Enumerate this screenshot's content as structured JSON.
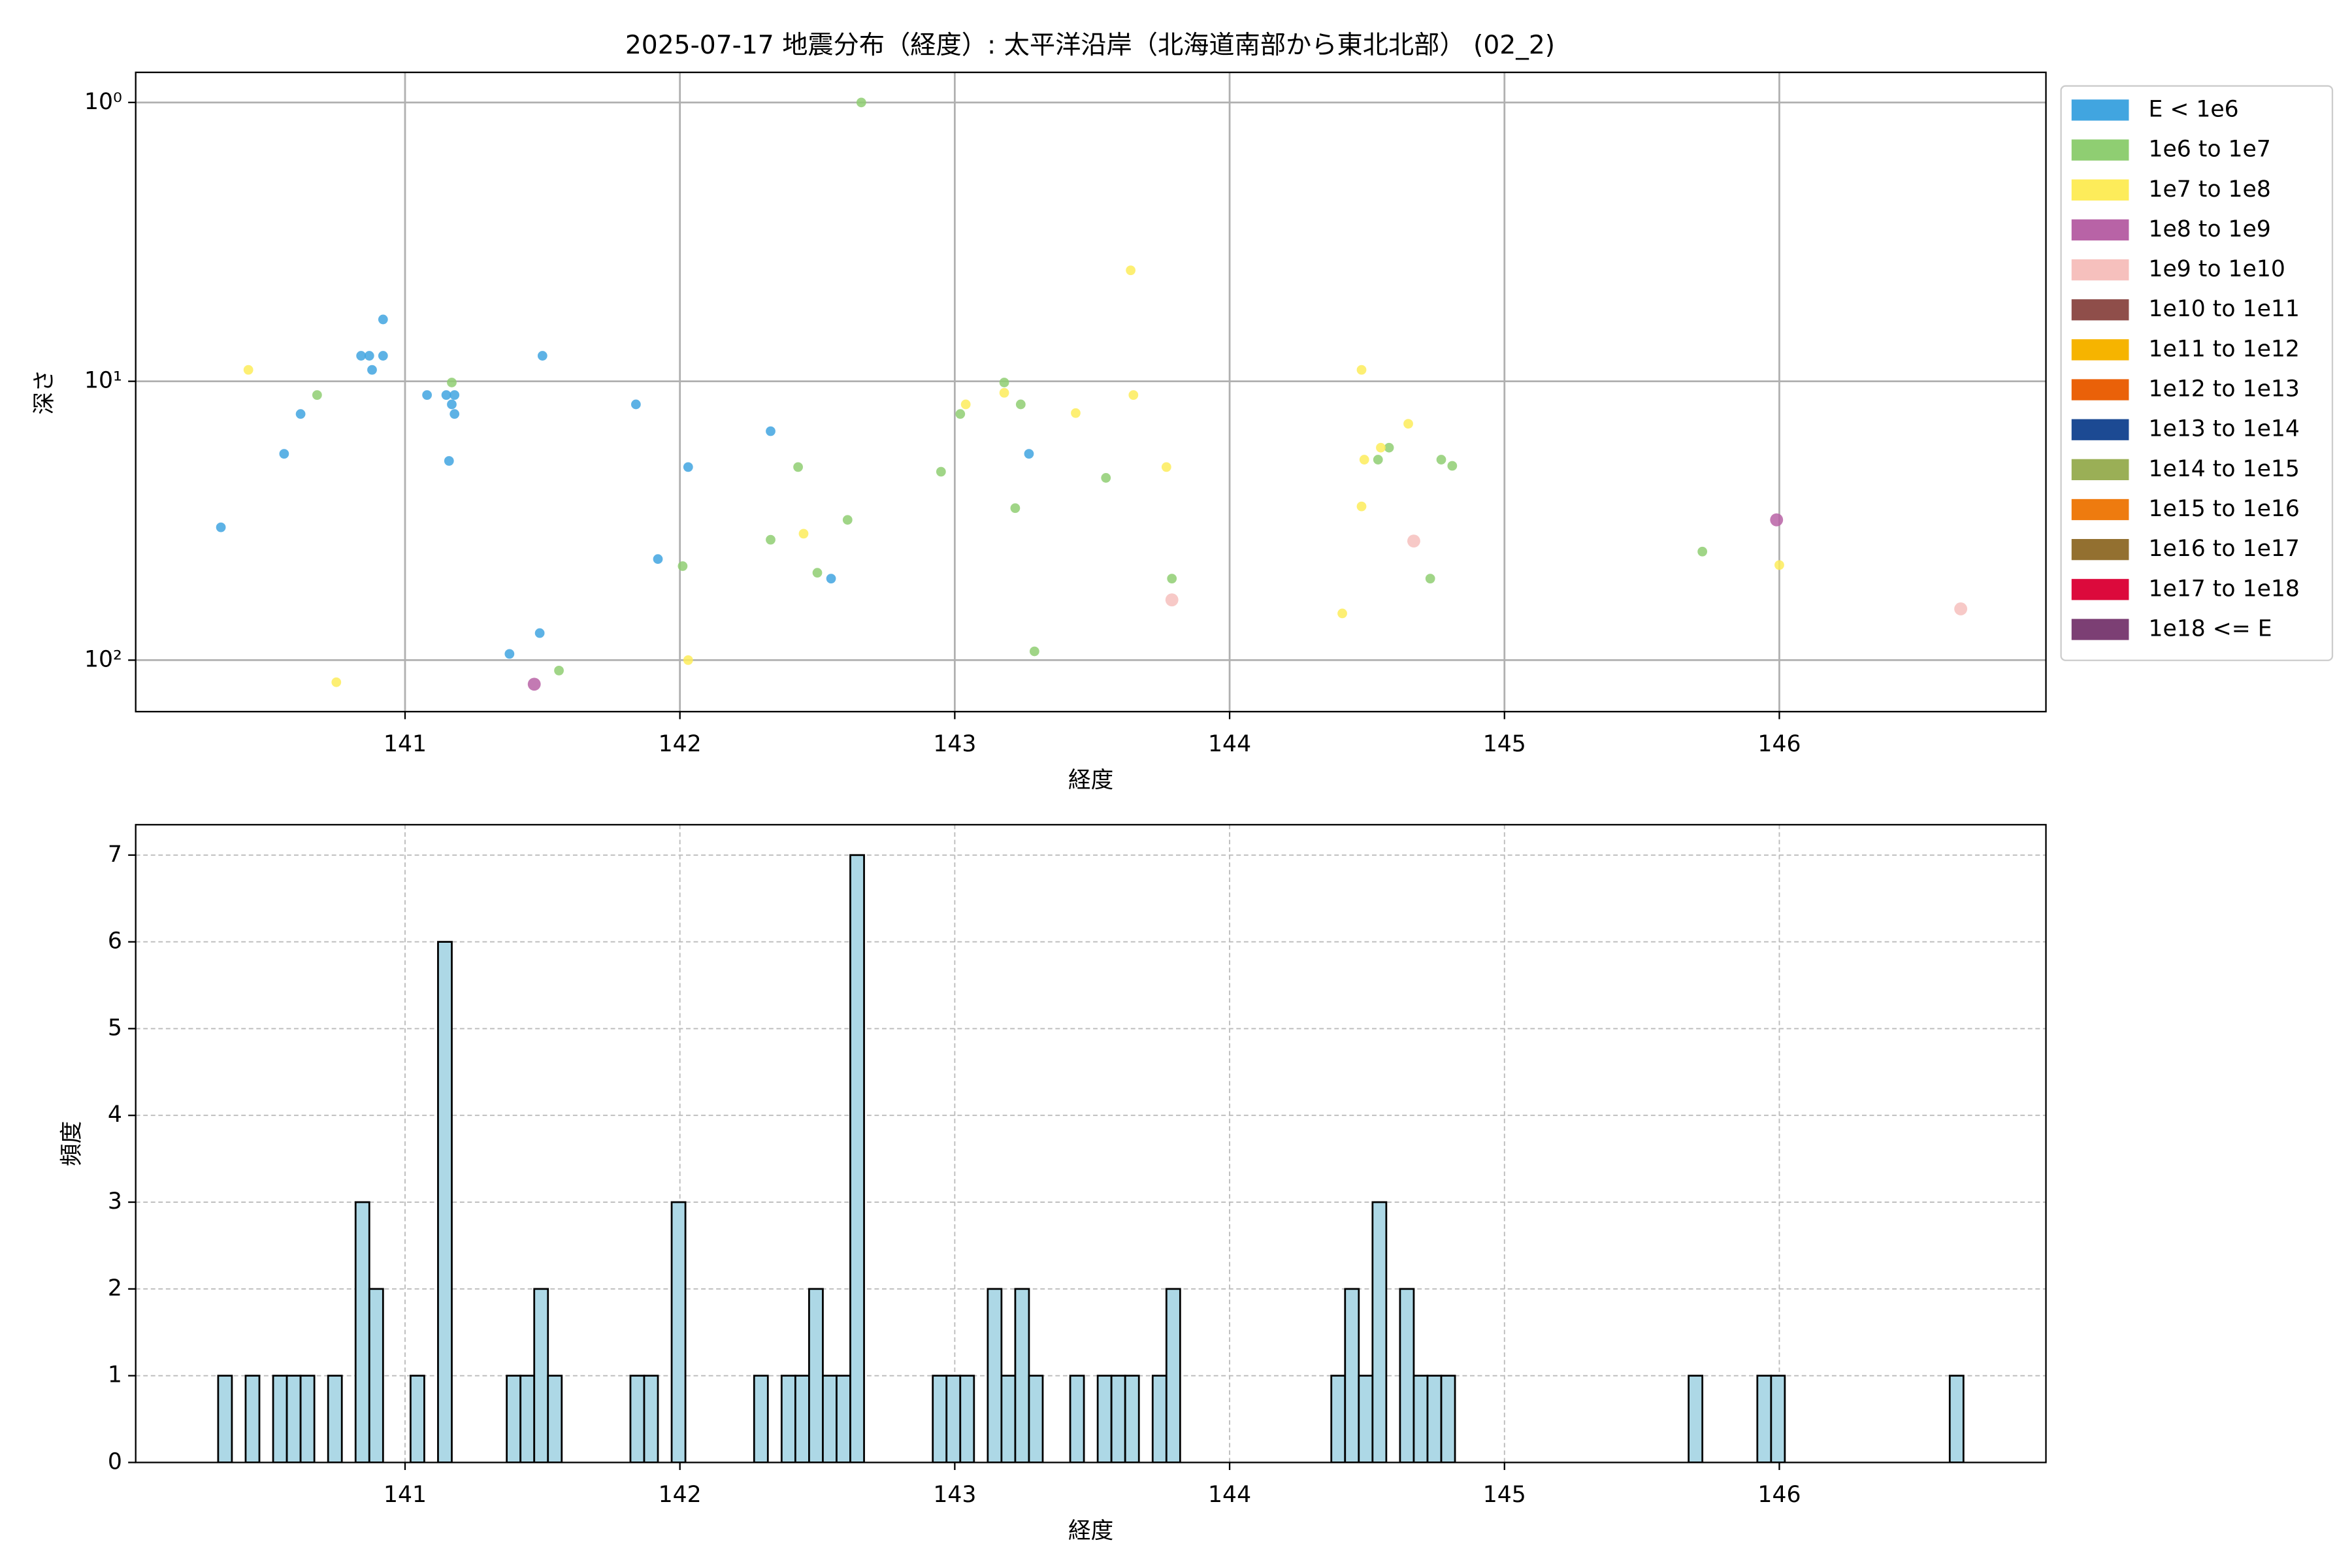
{
  "chart_data": [
    {
      "type": "scatter",
      "title": "2025-07-17 地震分布（経度）: 太平洋沿岸（北海道南部から東北北部） (02_2)",
      "xlabel": "経度",
      "ylabel": "深さ",
      "log_y": true,
      "grid": true,
      "grid_style": "solid",
      "legend": "outside-upper-right",
      "xlim": [
        140.02,
        146.97
      ],
      "xticks": [
        141,
        142,
        143,
        144,
        145,
        146
      ],
      "ylim": [
        153,
        0.78
      ],
      "yticks": [
        {
          "value": 1,
          "label": "10⁰"
        },
        {
          "value": 10,
          "label": "10¹"
        },
        {
          "value": 100,
          "label": "10²"
        }
      ],
      "series": [
        {
          "name": "E < 1e6",
          "color": "#41a5e0",
          "x": [
            140.33,
            140.56,
            140.62,
            140.84,
            140.87,
            140.88,
            140.92,
            140.92,
            141.08,
            141.15,
            141.18,
            141.17,
            141.18,
            141.16,
            141.38,
            141.49,
            141.5,
            141.84,
            141.92,
            142.03,
            142.33,
            142.55,
            143.27
          ],
          "y": [
            33.4,
            18.2,
            13.1,
            8.1,
            8.1,
            9.1,
            8.1,
            6.0,
            11.2,
            11.2,
            11.2,
            12.1,
            13.1,
            19.3,
            95,
            80,
            8.1,
            12.1,
            43.4,
            20.3,
            15.1,
            51,
            18.2
          ]
        },
        {
          "name": "1e6 to 1e7",
          "color": "#8fce72",
          "x": [
            140.68,
            141.17,
            141.56,
            142.01,
            142.33,
            142.43,
            142.5,
            142.61,
            142.66,
            142.95,
            143.02,
            143.18,
            143.24,
            143.22,
            143.29,
            143.55,
            143.79,
            144.54,
            144.58,
            144.73,
            144.77,
            144.81,
            145.72
          ],
          "y": [
            11.2,
            10.1,
            109,
            46,
            37,
            20.3,
            48.6,
            31.4,
            1.0,
            21.1,
            13.1,
            10.1,
            12.1,
            28.5,
            93,
            22.2,
            51,
            19.1,
            17.3,
            51,
            19.1,
            20.1,
            40.8
          ]
        },
        {
          "name": "1e7 to 1e8",
          "color": "#fdec5a",
          "x": [
            140.43,
            140.75,
            142.03,
            142.45,
            143.04,
            143.18,
            143.44,
            143.64,
            143.65,
            143.77,
            144.41,
            144.48,
            144.49,
            144.48,
            144.55,
            144.65,
            146.0
          ],
          "y": [
            9.1,
            120,
            100,
            35.2,
            12.1,
            11.0,
            13.0,
            4.0,
            11.2,
            20.3,
            68,
            9.1,
            19.1,
            28.1,
            17.3,
            14.2,
            45.6
          ]
        },
        {
          "name": "1e8 to 1e9",
          "color": "#b863a6",
          "x": [
            141.47,
            145.99
          ],
          "y": [
            122,
            31.4
          ]
        },
        {
          "name": "1e9 to 1e10",
          "color": "#f6c0bd",
          "x": [
            144.67,
            143.79,
            146.66
          ],
          "y": [
            37.4,
            60.8,
            65.5
          ]
        },
        {
          "name": "1e10 to 1e11",
          "color": "#8f4e4a",
          "x": [],
          "y": []
        },
        {
          "name": "1e11 to 1e12",
          "color": "#f6b400",
          "x": [],
          "y": []
        },
        {
          "name": "1e12 to 1e13",
          "color": "#ea6109",
          "x": [],
          "y": []
        },
        {
          "name": "1e13 to 1e14",
          "color": "#1c4a93",
          "x": [],
          "y": []
        },
        {
          "name": "1e14 to 1e15",
          "color": "#9aaf56",
          "x": [],
          "y": []
        },
        {
          "name": "1e15 to 1e16",
          "color": "#ee7b0f",
          "x": [],
          "y": []
        },
        {
          "name": "1e16 to 1e17",
          "color": "#937030",
          "x": [],
          "y": []
        },
        {
          "name": "1e17 to 1e18",
          "color": "#dc0a3c",
          "x": [],
          "y": []
        },
        {
          "name": "1e18 <= E",
          "color": "#7c3f74",
          "x": [],
          "y": []
        }
      ]
    },
    {
      "type": "histogram",
      "xlabel": "経度",
      "ylabel": "頻度",
      "grid": true,
      "grid_style": "dashed",
      "color": "#add8e6",
      "edgecolor": "#000000",
      "xlim": [
        140.02,
        146.97
      ],
      "xticks": [
        141,
        142,
        143,
        144,
        145,
        146
      ],
      "ylim": [
        0,
        7.35
      ],
      "yticks": [
        0,
        1,
        2,
        3,
        4,
        5,
        6,
        7
      ],
      "bins": [
        140.32,
        140.37,
        140.42,
        140.47,
        140.52,
        140.57,
        140.62,
        140.67,
        140.72,
        140.77,
        140.82,
        140.87,
        140.92,
        140.97,
        141.02,
        141.07,
        141.12,
        141.17,
        141.22,
        141.27,
        141.32,
        141.37,
        141.42,
        141.47,
        141.52,
        141.57,
        141.62,
        141.67,
        141.72,
        141.77,
        141.82,
        141.87,
        141.92,
        141.97,
        142.02,
        142.07,
        142.12,
        142.17,
        142.22,
        142.27,
        142.32,
        142.37,
        142.42,
        142.47,
        142.52,
        142.57,
        142.62,
        142.67,
        142.72,
        142.77,
        142.82,
        142.87,
        142.92,
        142.97,
        143.02,
        143.07,
        143.12,
        143.17,
        143.22,
        143.27,
        143.32,
        143.37,
        143.42,
        143.47,
        143.52,
        143.57,
        143.62,
        143.67,
        143.72,
        143.77,
        143.82,
        143.87,
        143.92,
        143.97,
        144.02,
        144.07,
        144.12,
        144.17,
        144.22,
        144.27,
        144.32,
        144.37,
        144.42,
        144.47,
        144.52,
        144.57,
        144.62,
        144.67,
        144.72,
        144.77,
        144.82,
        144.87,
        144.92,
        144.97,
        145.02,
        145.07,
        145.12,
        145.17,
        145.22,
        145.27,
        145.32,
        145.37,
        145.42,
        145.47,
        145.52,
        145.57,
        145.62,
        145.67,
        145.72,
        145.77,
        145.82,
        145.87,
        145.92,
        145.97,
        146.02,
        146.07,
        146.12,
        146.17,
        146.22,
        146.27,
        146.32,
        146.37,
        146.42,
        146.47,
        146.52,
        146.57,
        146.62,
        146.67
      ],
      "values": [
        1,
        0,
        1,
        0,
        1,
        1,
        1,
        0,
        1,
        0,
        3,
        2,
        0,
        0,
        1,
        0,
        6,
        0,
        0,
        0,
        0,
        1,
        1,
        2,
        1,
        0,
        0,
        0,
        0,
        0,
        1,
        1,
        0,
        3,
        0,
        0,
        0,
        0,
        0,
        1,
        0,
        1,
        1,
        2,
        1,
        1,
        7,
        0,
        0,
        0,
        0,
        0,
        1,
        1,
        1,
        0,
        2,
        1,
        2,
        1,
        0,
        0,
        1,
        0,
        1,
        1,
        1,
        0,
        1,
        2,
        0,
        0,
        0,
        0,
        0,
        0,
        0,
        0,
        0,
        0,
        0,
        1,
        2,
        1,
        3,
        0,
        2,
        1,
        1,
        1,
        0,
        0,
        0,
        0,
        0,
        0,
        0,
        0,
        0,
        0,
        0,
        0,
        0,
        0,
        0,
        0,
        0,
        1,
        0,
        0,
        0,
        0,
        1,
        1,
        0,
        0,
        0,
        0,
        0,
        0,
        0,
        0,
        0,
        0,
        0,
        0,
        1
      ]
    }
  ]
}
